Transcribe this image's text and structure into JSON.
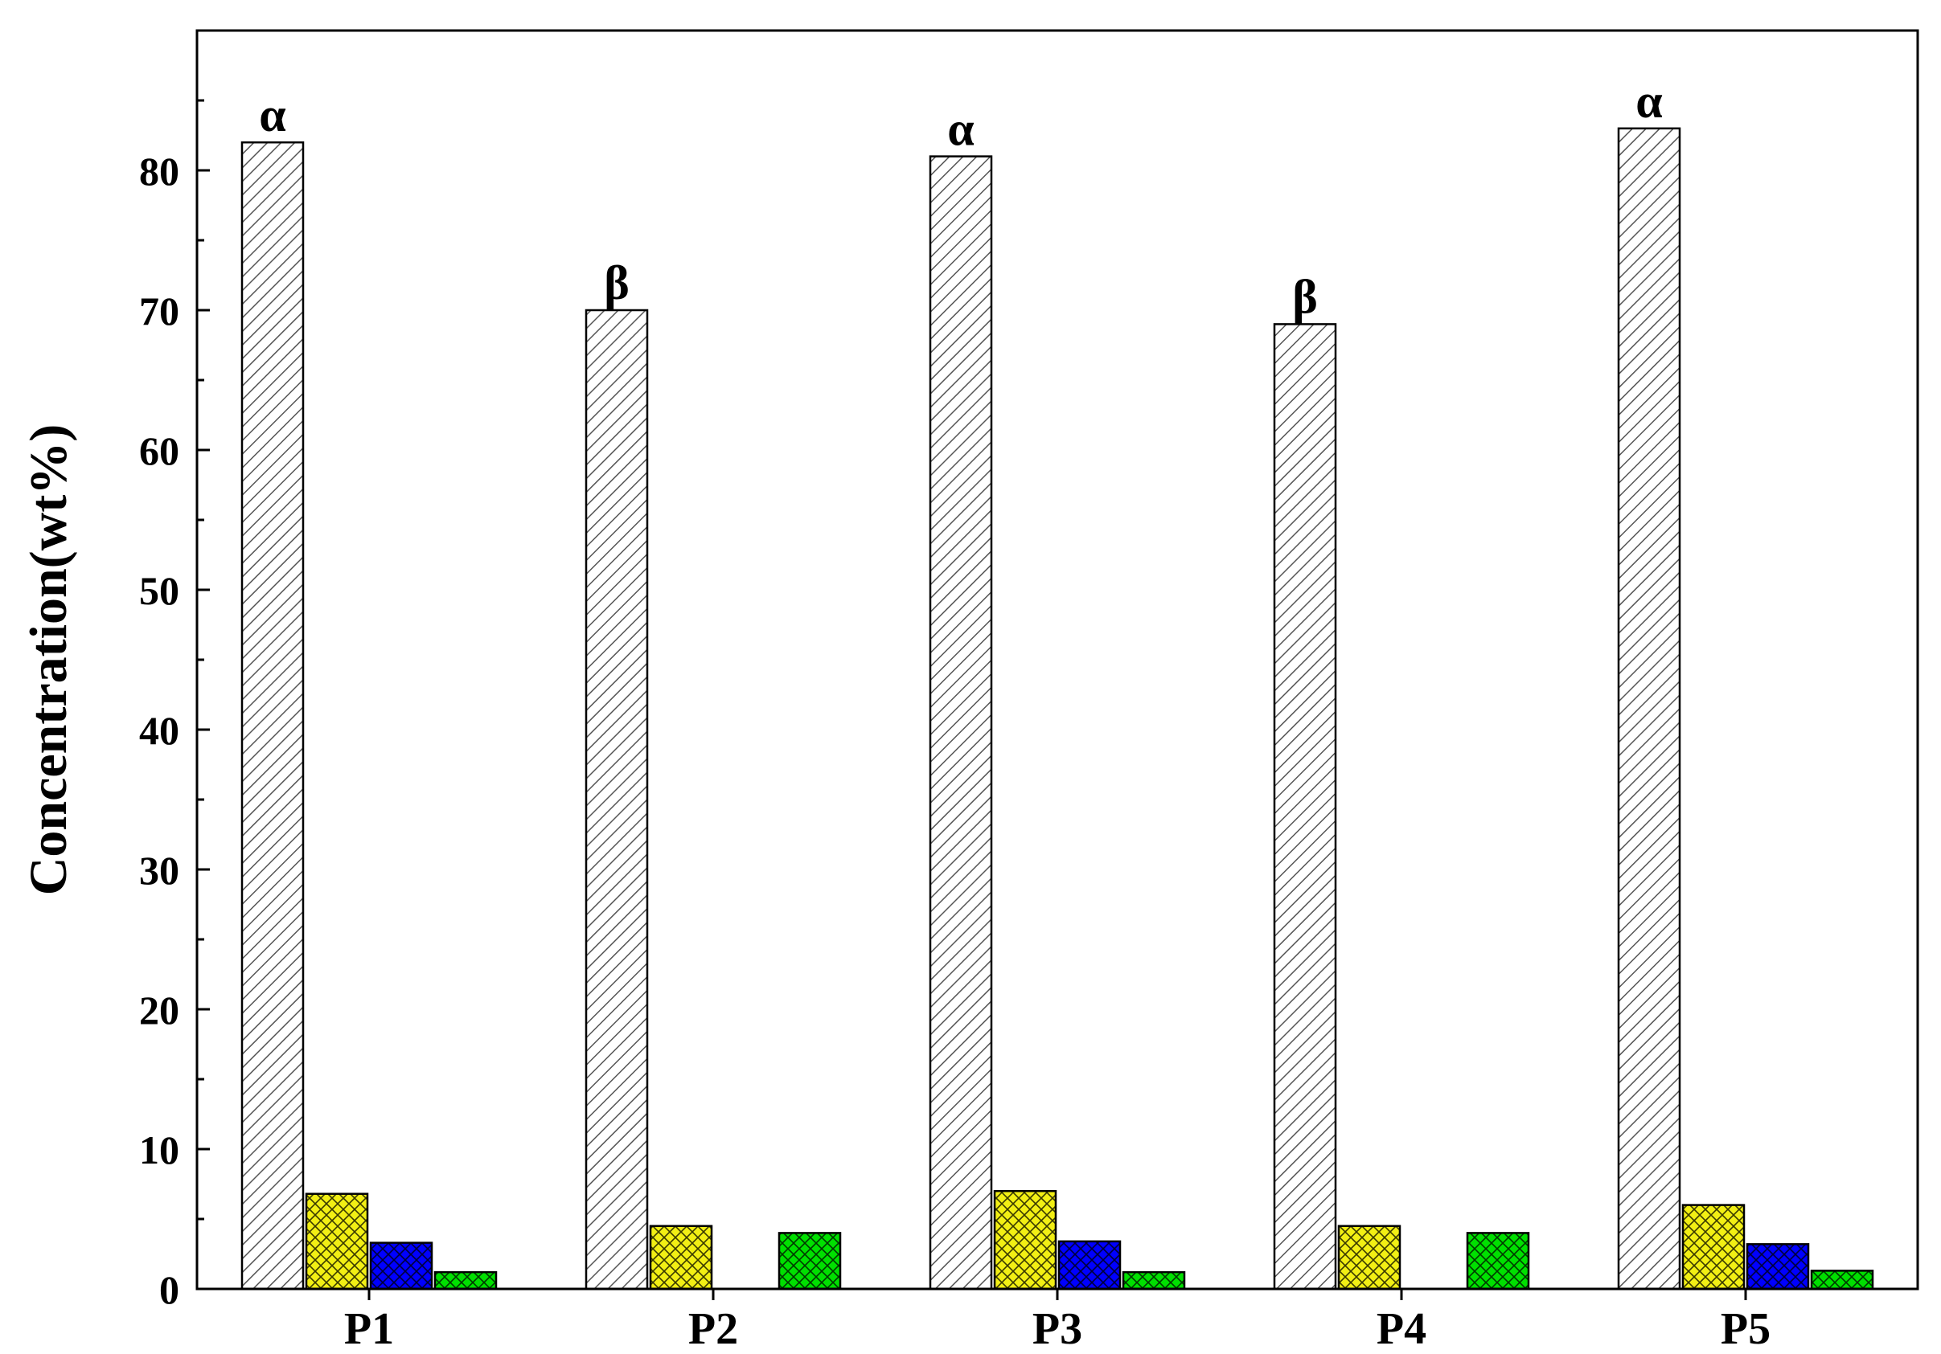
{
  "chart_data": {
    "type": "bar",
    "title": "",
    "xlabel": "",
    "ylabel": "Concentration(wt%)",
    "ylim": [
      0,
      90
    ],
    "yticks": [
      0,
      10,
      20,
      30,
      40,
      50,
      60,
      70,
      80
    ],
    "categories": [
      "P1",
      "P2",
      "P3",
      "P4",
      "P5"
    ],
    "grid": false,
    "legend": null,
    "series": [
      {
        "values": [
          82,
          70,
          81,
          69,
          83
        ],
        "color": "#ffffff",
        "pattern": "diagonal-hatch"
      },
      {
        "values": [
          6.8,
          4.5,
          7.0,
          4.5,
          6.0
        ],
        "color": "#f2ef14",
        "pattern": "crosshatch"
      },
      {
        "values": [
          3.3,
          0,
          3.4,
          0,
          3.2
        ],
        "color": "#0000ff",
        "pattern": "crosshatch"
      },
      {
        "values": [
          1.2,
          4.0,
          1.2,
          4.0,
          1.3
        ],
        "color": "#00e000",
        "pattern": "crosshatch"
      }
    ],
    "annotations": [
      "α",
      "β",
      "α",
      "β",
      "α"
    ]
  }
}
